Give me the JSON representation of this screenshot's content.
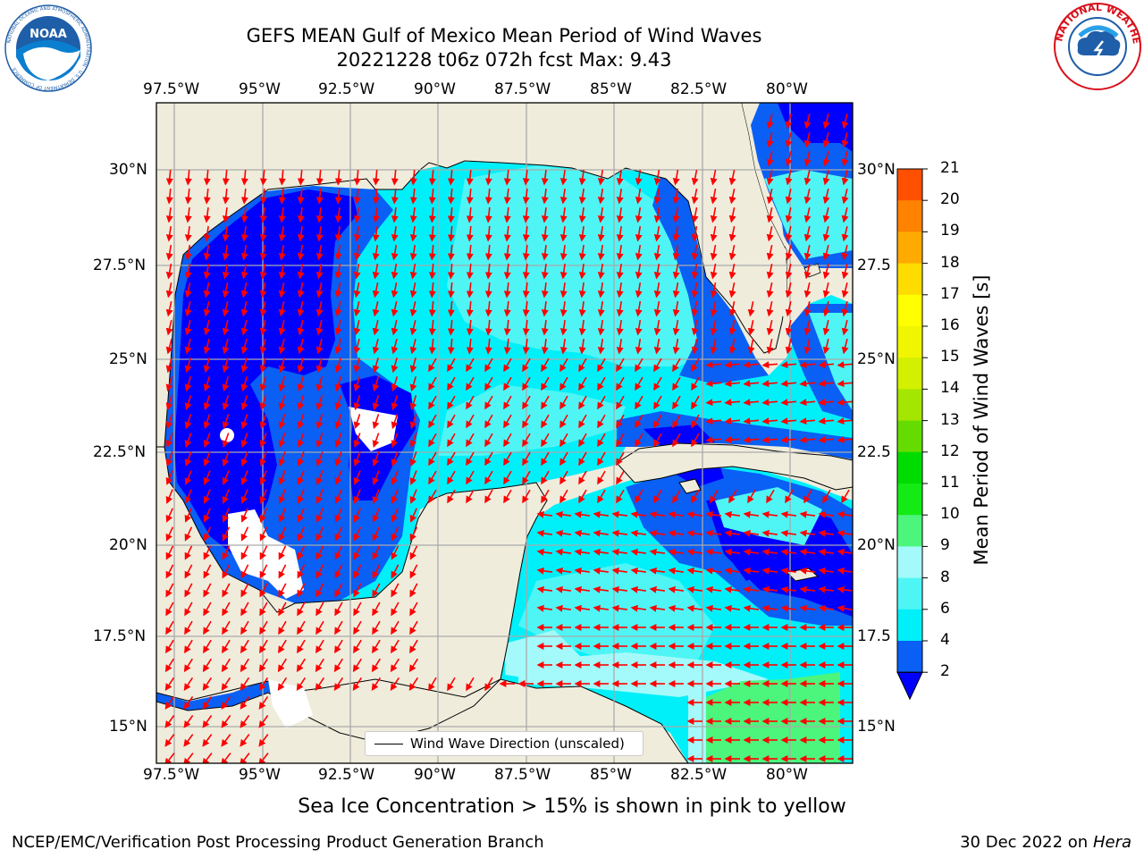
{
  "header": {
    "title_line1": "GEFS MEAN Gulf of Mexico Mean Period of Wind Waves",
    "title_line2": "20221228 t06z 072h fcst   Max: 9.43"
  },
  "logos": {
    "left": {
      "name": "NOAA",
      "ring_text": "NATIONAL OCEANIC AND ATMOSPHERIC ADMINISTRATION · U.S. DEPARTMENT OF COMMERCE",
      "color": "#1f5ea8"
    },
    "right": {
      "name": "NATIONAL WEATHER SERVICE",
      "color": "#d8101a"
    }
  },
  "map": {
    "lon_ticks": [
      "97.5°W",
      "95°W",
      "92.5°W",
      "90°W",
      "87.5°W",
      "85°W",
      "82.5°W",
      "80°W"
    ],
    "lat_ticks_left": [
      "30°N",
      "27.5°N",
      "25°N",
      "22.5°N",
      "20°N",
      "17.5°N",
      "15°N"
    ],
    "lat_ticks_right": [
      "30°N",
      "27.5",
      "25°N",
      "22.5",
      "20°N",
      "17.5",
      "15°N"
    ],
    "legend_label": "Wind Wave Direction (unscaled)",
    "land_color": "#efecdc",
    "arrow_color": "#ff0000"
  },
  "colorbar": {
    "label": "Mean Period of Wind Waves [s]",
    "ticks": [
      "2",
      "4",
      "6",
      "8",
      "9",
      "10",
      "11",
      "12",
      "13",
      "14",
      "15",
      "16",
      "17",
      "18",
      "19",
      "20",
      "21"
    ],
    "colors": [
      "#0a5ff5",
      "#00f0fa",
      "#4ff5f5",
      "#a4fafa",
      "#4cf57c",
      "#14eb14",
      "#00dc00",
      "#64dc00",
      "#a5e600",
      "#d2f000",
      "#f0f500",
      "#ffff00",
      "#ffdc00",
      "#ffaa00",
      "#ff8200",
      "#ff5000",
      "#ff2800",
      "#ff0000"
    ],
    "extend_color": "#0000ff"
  },
  "footer": {
    "ice_note": "Sea Ice Concentration > 15% is shown in pink to yellow",
    "left": "NCEP/EMC/Verification Post Processing Product Generation Branch",
    "date": "30 Dec 2022 on",
    "machine": "Hera"
  }
}
